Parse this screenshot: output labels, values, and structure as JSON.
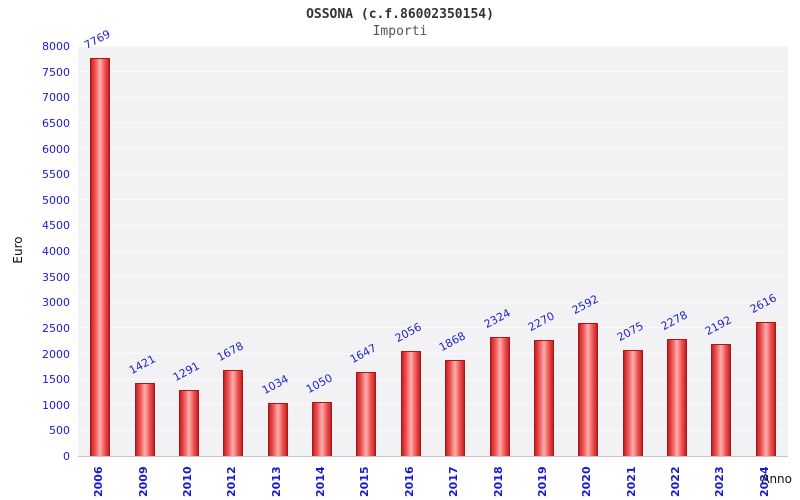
{
  "chart": {
    "title": "OSSONA (c.f.86002350154)",
    "subtitle": "Importi",
    "ylabel": "Euro",
    "xlabel": "Anno"
  },
  "chart_data": {
    "type": "bar",
    "title": "OSSONA (c.f.86002350154)",
    "subtitle": "Importi",
    "xlabel": "Anno",
    "ylabel": "Euro",
    "categories": [
      "2006",
      "2009",
      "2010",
      "2012",
      "2013",
      "2014",
      "2015",
      "2016",
      "2017",
      "2018",
      "2019",
      "2020",
      "2021",
      "2022",
      "2023",
      "2024"
    ],
    "values": [
      7769,
      1421,
      1291,
      1678,
      1034,
      1050,
      1647,
      2056,
      1868,
      2324,
      2270,
      2592,
      2075,
      2278,
      2192,
      2616
    ],
    "ylim": [
      0,
      8000
    ],
    "ytick_step": 500,
    "grid": true,
    "legend": false,
    "bar_color": "#e53131",
    "value_label_color": "#2222cc",
    "tick_label_color": "#1a1acc"
  }
}
